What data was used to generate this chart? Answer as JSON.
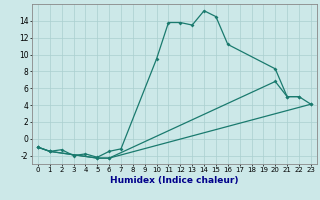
{
  "title": "",
  "xlabel": "Humidex (Indice chaleur)",
  "background_color": "#cce8e8",
  "line_color": "#1a7a6e",
  "xlim": [
    -0.5,
    23.5
  ],
  "ylim": [
    -3,
    16
  ],
  "xticks": [
    0,
    1,
    2,
    3,
    4,
    5,
    6,
    7,
    8,
    9,
    10,
    11,
    12,
    13,
    14,
    15,
    16,
    17,
    18,
    19,
    20,
    21,
    22,
    23
  ],
  "yticks": [
    -2,
    0,
    2,
    4,
    6,
    8,
    10,
    12,
    14
  ],
  "grid_color": "#aacfcf",
  "curve1": {
    "x": [
      0,
      1,
      2,
      3,
      4,
      5,
      6,
      7,
      10,
      11,
      12,
      13,
      14,
      15,
      16,
      20,
      21,
      22,
      23
    ],
    "y": [
      -1,
      -1.5,
      -1.3,
      -2,
      -1.8,
      -2.2,
      -1.5,
      -1.2,
      9.5,
      13.8,
      13.8,
      13.5,
      15.2,
      14.5,
      11.2,
      8.3,
      5.0,
      5.0,
      4.1
    ]
  },
  "curve2": {
    "x": [
      0,
      1,
      5,
      6,
      23
    ],
    "y": [
      -1,
      -1.5,
      -2.3,
      -2.3,
      4.1
    ]
  },
  "curve3": {
    "x": [
      0,
      1,
      5,
      6,
      20,
      21,
      22
    ],
    "y": [
      -1,
      -1.5,
      -2.3,
      -2.3,
      6.8,
      5.0,
      5.0
    ]
  },
  "xlabel_fontsize": 6.5,
  "xlabel_color": "#00008b",
  "tick_fontsize": 5.0,
  "ytick_fontsize": 5.5
}
